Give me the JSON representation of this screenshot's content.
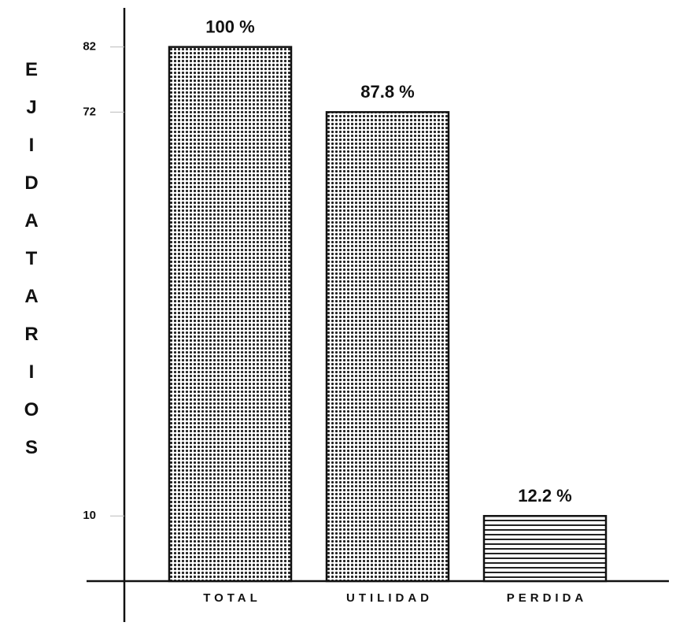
{
  "chart_data": {
    "type": "bar",
    "ylabel": "EJIDATARIOS",
    "categories": [
      "TOTAL",
      "UTILIDAD",
      "PERDIDA"
    ],
    "values": [
      82,
      72,
      10
    ],
    "annotations": [
      "100 %",
      "87.8 %",
      "12.2 %"
    ],
    "patterns": [
      "dots",
      "dots",
      "stripes"
    ],
    "ylim": [
      0,
      88
    ],
    "yticks": [
      10,
      72,
      82
    ]
  }
}
